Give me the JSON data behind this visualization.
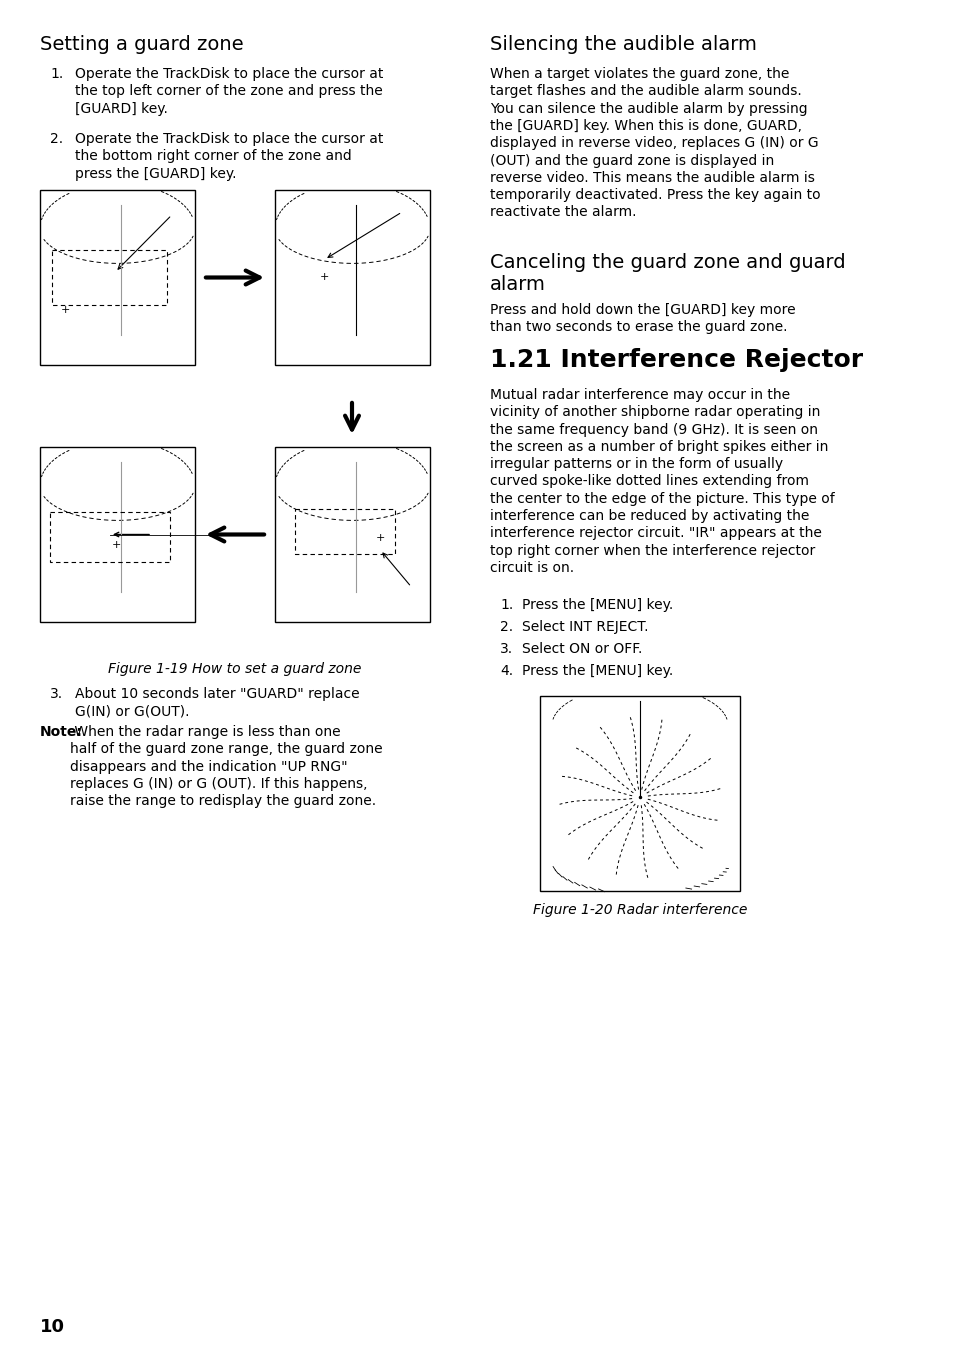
{
  "bg_color": "#ffffff",
  "page_number": "10",
  "left_section1_title": "Setting a guard zone",
  "left_item1": "Operate the TrackDisk to place the cursor at\nthe top left corner of the zone and press the\n[GUARD] key.",
  "left_item2": "Operate the TrackDisk to place the cursor at\nthe bottom right corner of the zone and\npress the [GUARD] key.",
  "left_figure_caption": "Figure 1-19 How to set a guard zone",
  "left_item3": "About 10 seconds later \"GUARD\" replace\nG(IN) or G(OUT).",
  "left_note_bold": "Note:",
  "left_note_text": " When the radar range is less than one\nhalf of the guard zone range, the guard zone\ndisappears and the indication \"UP RNG\"\nreplaces G (IN) or G (OUT). If this happens,\nraise the range to redisplay the guard zone.",
  "right_section1_title": "Silencing the audible alarm",
  "right_section1_text": "When a target violates the guard zone, the\ntarget flashes and the audible alarm sounds.\nYou can silence the audible alarm by pressing\nthe [GUARD] key. When this is done, GUARD,\ndisplayed in reverse video, replaces G (IN) or G\n(OUT) and the guard zone is displayed in\nreverse video. This means the audible alarm is\ntemporarily deactivated. Press the key again to\nreactivate the alarm.",
  "right_section2_title": "Canceling the guard zone and guard\nalarm",
  "right_section2_text": "Press and hold down the [GUARD] key more\nthan two seconds to erase the guard zone.",
  "right_section3_title": "1.21 Interference Rejector",
  "right_section3_text": "Mutual radar interference may occur in the\nvicinity of another shipborne radar operating in\nthe same frequency band (9 GHz). It is seen on\nthe screen as a number of bright spikes either in\nirregular patterns or in the form of usually\ncurved spoke-like dotted lines extending from\nthe center to the edge of the picture. This type of\ninterference can be reduced by activating the\ninterference rejector circuit. \"IR\" appears at the\ntop right corner when the interference rejector\ncircuit is on.",
  "right_section3_items": [
    "Press the [MENU] key.",
    "Select INT REJECT.",
    "Select ON or OFF.",
    "Press the [MENU] key."
  ],
  "right_figure_caption": "Figure 1-20 Radar interference"
}
